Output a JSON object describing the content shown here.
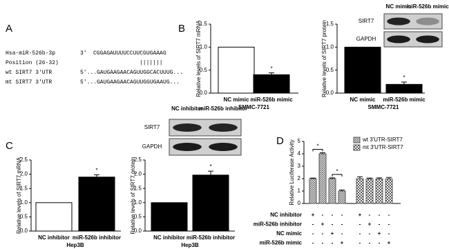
{
  "panel_a": {
    "panel": "A",
    "rows": [
      {
        "name": "Hsa-miR-526b-3p",
        "end": "3'",
        "sequence": "CGGAGAUUUUCCUUCGUGAAAG"
      },
      {
        "name": "Position (26-32)",
        "sequence": "|||||||"
      },
      {
        "name": "wt SIRT7 3'UTR",
        "sequence": "5'...GAUGAAGAACAGUUGGCACUUUG..."
      },
      {
        "name": "mt SIRT7 3'UTR",
        "sequence": "5'...GAUGAAGAACAGUUGGUGAAUG..."
      }
    ]
  },
  "chart_data": [
    {
      "type": "bar",
      "panel": "B",
      "ylabel": "Relative levels of SIRT7 mRNA",
      "xlabel": "SMMC-7721",
      "categories": [
        "NC mimic",
        "miR-526b mimic"
      ],
      "values": [
        1.0,
        0.4
      ],
      "errors": [
        null,
        0.04
      ],
      "colors": [
        "#ffffff",
        "#000000"
      ],
      "annotation": "*",
      "ylim": [
        0,
        1.5
      ],
      "yticks": [
        {
          "value": 0,
          "label": "0.0"
        },
        {
          "value": 0.5,
          "label": "0.5"
        },
        {
          "value": 1,
          "label": "1.0"
        },
        {
          "value": 1.5,
          "label": "1.5"
        }
      ]
    },
    {
      "type": "bar",
      "ylabel": "Relative levels of SIRT7 protein",
      "xlabel": "SMMC-7721",
      "categories": [
        "NC mimic",
        "miR-526b mimic"
      ],
      "values": [
        1.0,
        0.19
      ],
      "errors": [
        null,
        0.05
      ],
      "colors": [
        "#000000",
        "#000000"
      ],
      "annotation": "*",
      "ylim": [
        0,
        1.5
      ],
      "yticks": [
        {
          "value": 0,
          "label": "0.0"
        },
        {
          "value": 0.5,
          "label": "0.5"
        },
        {
          "value": 1,
          "label": "1.0"
        },
        {
          "value": 1.5,
          "label": "1.5"
        }
      ],
      "blot": {
        "lanes": [
          "NC mimic",
          "miR-526b mimic"
        ],
        "rows": [
          "SIRT7",
          "GAPDH"
        ]
      }
    },
    {
      "type": "bar",
      "panel": "C",
      "ylabel": "Relative levels of SIRT7 mRNA",
      "xlabel": "Hep3B",
      "categories": [
        "NC inhibitor",
        "miR-526b inhibitor"
      ],
      "values": [
        1.0,
        1.9
      ],
      "errors": [
        null,
        0.08
      ],
      "colors": [
        "#ffffff",
        "#000000"
      ],
      "annotation": "*",
      "ylim": [
        0,
        2.5
      ],
      "yticks": [
        {
          "value": 0,
          "label": "0.0"
        },
        {
          "value": 0.5,
          "label": "0.5"
        },
        {
          "value": 1,
          "label": "1.0"
        },
        {
          "value": 1.5,
          "label": "1.5"
        },
        {
          "value": 2,
          "label": "2.0"
        },
        {
          "value": 2.5,
          "label": "2.5"
        }
      ]
    },
    {
      "type": "bar",
      "ylabel": "Relative levels of SIRT7 protein",
      "xlabel": "Hep3B",
      "categories": [
        "NC inhibitor",
        "miR-526b inhibitor"
      ],
      "values": [
        1.0,
        1.97
      ],
      "errors": [
        null,
        0.14
      ],
      "colors": [
        "#000000",
        "#000000"
      ],
      "annotation": "*",
      "ylim": [
        0,
        2.5
      ],
      "yticks": [
        {
          "value": 0,
          "label": "0.0"
        },
        {
          "value": 0.5,
          "label": "0.5"
        },
        {
          "value": 1,
          "label": "1.0"
        },
        {
          "value": 1.5,
          "label": "1.5"
        },
        {
          "value": 2,
          "label": "2.0"
        },
        {
          "value": 2.5,
          "label": "2.5"
        }
      ],
      "blot": {
        "lanes": [
          "NC inhibitor",
          "miR-526b inhibitor"
        ],
        "rows": [
          "SIRT7",
          "GAPDH"
        ]
      }
    },
    {
      "type": "grouped",
      "panel": "D",
      "ylabel": "Relative Luciferase Activity",
      "ylim": [
        0,
        5
      ],
      "yticks": [
        0,
        1,
        2,
        3,
        4,
        5
      ],
      "series": [
        {
          "name": "wt 3'UTR-SIRT7",
          "color": "#555555",
          "values": [
            2.0,
            4.0,
            2.0,
            1.0,
            null,
            null,
            null,
            null
          ],
          "errors": [
            0.05,
            0.08,
            0.06,
            0.08,
            null,
            null,
            null,
            null
          ]
        },
        {
          "name": "mt 3'UTR-SIRT7",
          "color": "#555555",
          "values": [
            null,
            null,
            null,
            null,
            2.0,
            1.98,
            1.98,
            1.98
          ],
          "errors": [
            null,
            null,
            null,
            null,
            0.15,
            0.07,
            0.08,
            0.12
          ]
        }
      ],
      "annotations": [
        "*",
        "*"
      ],
      "conditions": [
        {
          "name": "NC inhibitor",
          "signs": [
            "+",
            "-",
            "-",
            "-",
            "+",
            "-",
            "-",
            "-"
          ]
        },
        {
          "name": "miR-526b inhibitor",
          "signs": [
            "-",
            "+",
            "-",
            "-",
            "-",
            "+",
            "-",
            "-"
          ]
        },
        {
          "name": "NC mimic",
          "signs": [
            "-",
            "-",
            "+",
            "-",
            "-",
            "-",
            "+",
            "-"
          ]
        },
        {
          "name": "miR-526b mimic",
          "signs": [
            "-",
            "-",
            "-",
            "+",
            "-",
            "-",
            "-",
            "+"
          ]
        }
      ]
    }
  ]
}
